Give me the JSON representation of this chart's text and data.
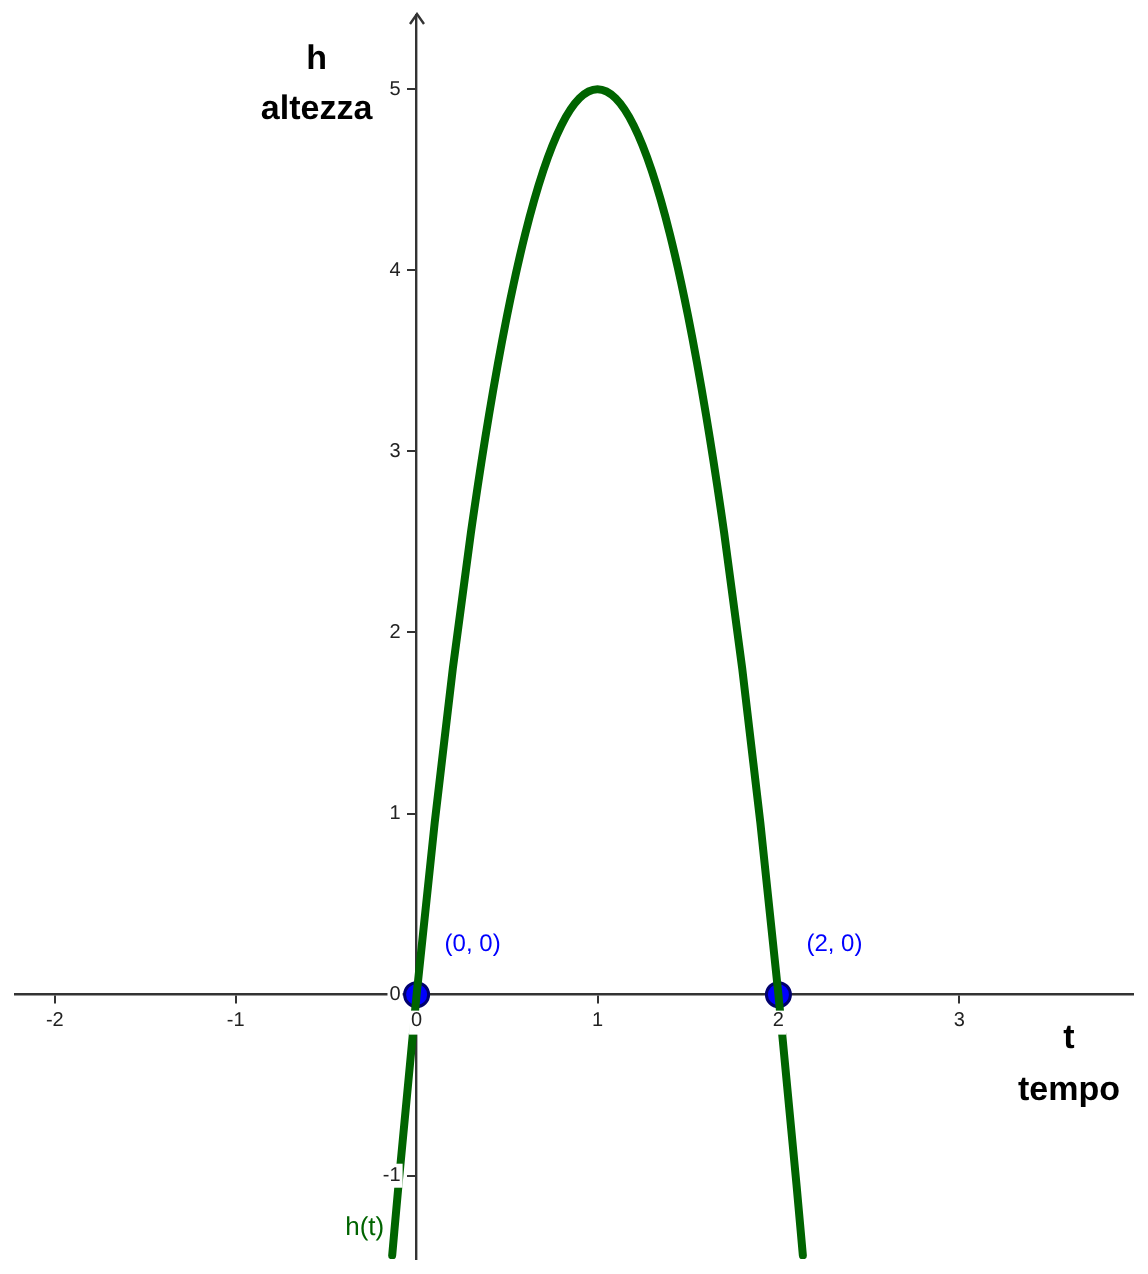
{
  "chart_data": {
    "type": "line",
    "xlabel": "t\ntempo",
    "ylabel": "h\naltezza",
    "xlim": [
      -2.22,
      3.96
    ],
    "ylim": [
      -1.46,
      5.41
    ],
    "xticks": [
      -2,
      -1,
      0,
      1,
      2,
      3
    ],
    "yticks": [
      -1,
      0,
      1,
      2,
      3,
      4,
      5
    ],
    "grid": false,
    "legend": false,
    "series": [
      {
        "name": "h(t)",
        "type": "line",
        "color": "#006400",
        "marker": "none",
        "x": [
          -0.135,
          -0.1,
          0,
          0.1,
          0.2,
          0.3,
          0.4,
          0.5,
          0.6,
          0.7,
          0.8,
          0.9,
          1,
          1.1,
          1.2,
          1.3,
          1.4,
          1.5,
          1.6,
          1.7,
          1.8,
          1.9,
          2,
          2.1,
          2.135
        ],
        "values": [
          -1.44,
          -1.05,
          0,
          0.95,
          1.8,
          2.55,
          3.2,
          3.75,
          4.2,
          4.55,
          4.8,
          4.95,
          5,
          4.95,
          4.8,
          4.55,
          4.2,
          3.75,
          3.2,
          2.55,
          1.8,
          0.95,
          0,
          -1.05,
          -1.44
        ]
      },
      {
        "type": "scatter",
        "color": "#0000ff",
        "marker": "circle",
        "x": [
          0,
          2
        ],
        "values": [
          0,
          0
        ],
        "value_labels": [
          "(0, 0)",
          "(2, 0)"
        ]
      }
    ]
  }
}
